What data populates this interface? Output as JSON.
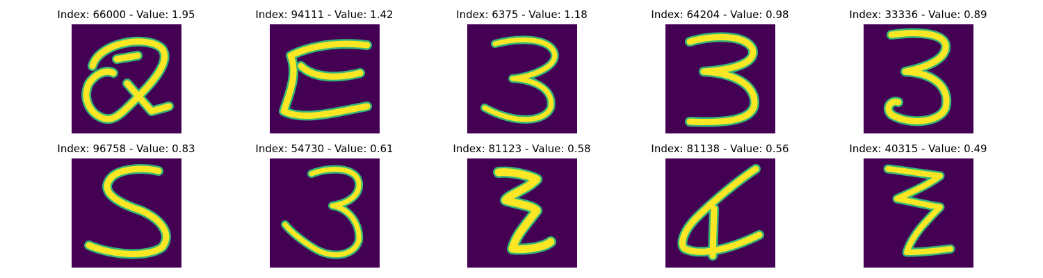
{
  "panels": [
    {
      "title": "Index: 66000 - Value: 1.95",
      "glyph": "Q",
      "index": 66000,
      "value": 1.95
    },
    {
      "title": "Index: 94111 - Value: 1.42",
      "glyph": "E",
      "index": 94111,
      "value": 1.42
    },
    {
      "title": "Index: 6375 - Value: 1.18",
      "glyph": "3",
      "index": 6375,
      "value": 1.18
    },
    {
      "title": "Index: 64204 - Value: 0.98",
      "glyph": "3",
      "index": 64204,
      "value": 0.98
    },
    {
      "title": "Index: 33336 - Value: 0.89",
      "glyph": "3",
      "index": 33336,
      "value": 0.89
    },
    {
      "title": "Index: 96758 - Value: 0.83",
      "glyph": "S",
      "index": 96758,
      "value": 0.83
    },
    {
      "title": "Index: 54730 - Value: 0.61",
      "glyph": "3",
      "index": 54730,
      "value": 0.61
    },
    {
      "title": "Index: 81123 - Value: 0.58",
      "glyph": "Z",
      "index": 81123,
      "value": 0.58
    },
    {
      "title": "Index: 81138 - Value: 0.56",
      "glyph": "d",
      "index": 81138,
      "value": 0.56
    },
    {
      "title": "Index: 40315 - Value: 0.49",
      "glyph": "Z",
      "index": 40315,
      "value": 0.49
    }
  ],
  "colors": {
    "background": "#440154",
    "stroke": "#fde725",
    "edge": "#35b779"
  }
}
